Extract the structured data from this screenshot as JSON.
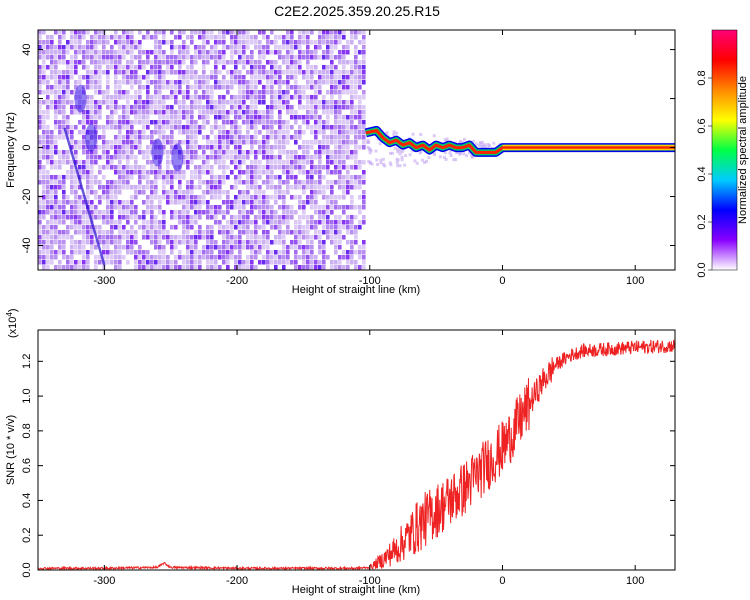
{
  "title": "C2E2.2025.359.20.25.R15",
  "chart_data": [
    {
      "type": "heatmap",
      "title": "C2E2.2025.359.20.25.R15",
      "xlabel": "Height of straight line (km)",
      "ylabel": "Frequency (Hz)",
      "xlim": [
        -350,
        130
      ],
      "ylim": [
        -50,
        48
      ],
      "x_ticks": [
        -300,
        -200,
        -100,
        0,
        100
      ],
      "y_ticks": [
        -40,
        -20,
        0,
        20,
        40
      ],
      "colorbar": {
        "label": "Normalized spectral amplitude",
        "range": [
          0.0,
          1.0
        ],
        "ticks": [
          0.0,
          0.2,
          0.4,
          0.6,
          0.8
        ],
        "tick_labels": [
          "0.0",
          "0.2",
          "0.4",
          "0.6",
          "0.8"
        ],
        "colors": [
          "#ffffff",
          "#8800ff",
          "#0000ff",
          "#00ccff",
          "#00ff44",
          "#ffff00",
          "#ff8800",
          "#ff0000",
          "#ff0077"
        ]
      },
      "noise_region": {
        "x_from": -350,
        "x_to": -103
      },
      "signal_trace": {
        "x": [
          -103,
          -95,
          -90,
          -85,
          -80,
          -75,
          -70,
          -65,
          -60,
          -55,
          -50,
          -45,
          -40,
          -35,
          -30,
          -25,
          -20,
          -15,
          -10,
          -5,
          0,
          130
        ],
        "y": [
          6,
          7,
          4,
          2,
          3,
          1,
          2,
          0,
          1,
          -1,
          1,
          0,
          1,
          0,
          0,
          1,
          -2,
          -2,
          -2,
          -2,
          0,
          0
        ]
      }
    },
    {
      "type": "line",
      "xlabel": "Height of straight line (km)",
      "ylabel": "SNR (10 * v/v)",
      "y_scale_label": "(x10",
      "y_scale_exponent": "4",
      "xlim": [
        -350,
        130
      ],
      "ylim": [
        0,
        1.38
      ],
      "x_ticks": [
        -300,
        -200,
        -100,
        0,
        100
      ],
      "y_ticks": [
        0.0,
        0.2,
        0.4,
        0.6,
        0.8,
        1.0,
        1.2
      ],
      "y_tick_labels": [
        "0.0",
        "0.2",
        "0.4",
        "0.6",
        "0.8",
        "1.0",
        "1.2"
      ],
      "series": [
        {
          "color": "#ee2222",
          "x": [
            -350,
            -300,
            -260,
            -255,
            -250,
            -200,
            -150,
            -110,
            -100,
            -90,
            -80,
            -70,
            -60,
            -50,
            -40,
            -30,
            -20,
            -10,
            0,
            10,
            20,
            30,
            40,
            50,
            60,
            80,
            100,
            130
          ],
          "y": [
            0.01,
            0.01,
            0.015,
            0.04,
            0.015,
            0.01,
            0.01,
            0.01,
            0.015,
            0.06,
            0.12,
            0.2,
            0.28,
            0.34,
            0.4,
            0.46,
            0.54,
            0.62,
            0.7,
            0.82,
            0.95,
            1.08,
            1.18,
            1.23,
            1.26,
            1.27,
            1.28,
            1.29
          ]
        }
      ]
    }
  ]
}
